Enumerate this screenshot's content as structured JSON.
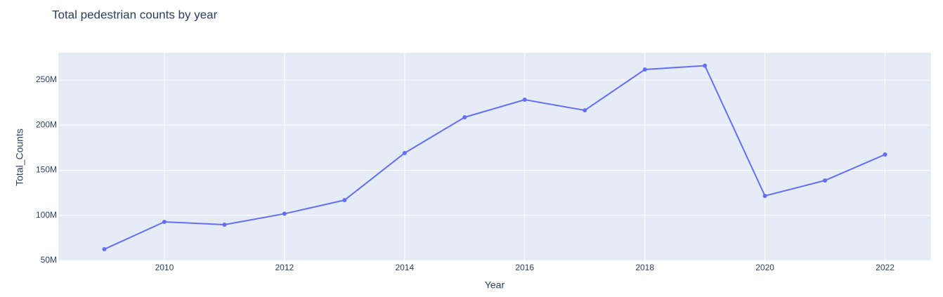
{
  "chart_data": {
    "type": "line",
    "title": "Total pedestrian counts by year",
    "x_label": "Year",
    "y_label": "Total_Counts",
    "x": [
      2009,
      2010,
      2011,
      2012,
      2013,
      2014,
      2015,
      2016,
      2017,
      2018,
      2019,
      2020,
      2021,
      2022
    ],
    "series": [
      {
        "name": "Total_Counts",
        "color": "#636efa",
        "values": [
          62500000,
          92800000,
          89700000,
          101800000,
          116900000,
          169100000,
          208800000,
          228200000,
          216500000,
          261700000,
          266000000,
          121600000,
          138700000,
          167500000
        ]
      }
    ],
    "xlim": [
      2008.234,
      2022.766
    ],
    "xticks": [
      2010,
      2012,
      2014,
      2016,
      2018,
      2020,
      2022
    ],
    "ylim": [
      49200000,
      280400000
    ],
    "yticks": [
      {
        "value": 50000000,
        "label": "50M"
      },
      {
        "value": 100000000,
        "label": "100M"
      },
      {
        "value": 150000000,
        "label": "150M"
      },
      {
        "value": 200000000,
        "label": "200M"
      },
      {
        "value": 250000000,
        "label": "250M"
      }
    ],
    "grid": true
  }
}
